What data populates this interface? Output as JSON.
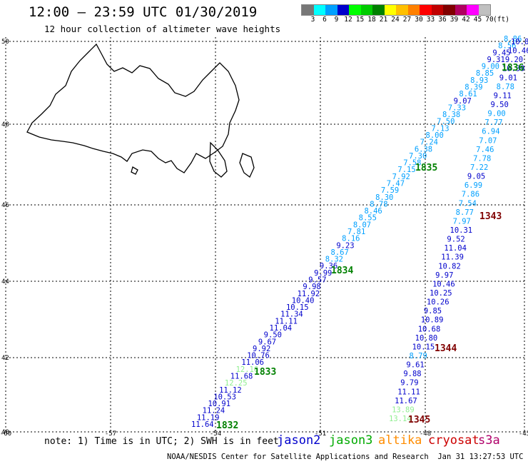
{
  "header": {
    "title": "12:00 – 23:59 UTC 01/30/2019",
    "subtitle": "12 hour collection of altimeter wave heights"
  },
  "colorbar": {
    "colors": [
      "#777777",
      "#00ffff",
      "#00a0ff",
      "#0000cc",
      "#00ff00",
      "#00cc00",
      "#008000",
      "#ffff00",
      "#ffc000",
      "#ff8000",
      "#ff0000",
      "#c00000",
      "#800000",
      "#b00060",
      "#ff00ff",
      "#c0c0c0"
    ],
    "labels": [
      "3",
      "6",
      "9",
      "12",
      "15",
      "18",
      "21",
      "24",
      "27",
      "30",
      "33",
      "36",
      "39",
      "42",
      "45",
      "70",
      "(ft)"
    ]
  },
  "axes": {
    "lon_labels": [
      "-60",
      "-57",
      "-54",
      "-51",
      "-48",
      "-45"
    ],
    "lat_labels": [
      "50",
      "48",
      "46",
      "44",
      "42",
      "40"
    ]
  },
  "track_labels": [
    {
      "text": "1832",
      "color": "#008000"
    },
    {
      "text": "1833",
      "color": "#008000"
    },
    {
      "text": "1834",
      "color": "#008000"
    },
    {
      "text": "1835",
      "color": "#008000"
    },
    {
      "text": "1836",
      "color": "#008000"
    },
    {
      "text": "1343",
      "color": "#800000"
    },
    {
      "text": "1344",
      "color": "#800000"
    },
    {
      "text": "1345",
      "color": "#800000"
    }
  ],
  "tracks": {
    "jason3": [
      {
        "v": "11.64",
        "c": "#0000cc"
      },
      {
        "v": "11.19",
        "c": "#0000cc"
      },
      {
        "v": "11.24",
        "c": "#0000cc"
      },
      {
        "v": "10.91",
        "c": "#0000cc"
      },
      {
        "v": "10.53",
        "c": "#0000cc"
      },
      {
        "v": "11.12",
        "c": "#0000cc"
      },
      {
        "v": "12.25",
        "c": "#90ee90"
      },
      {
        "v": "11.68",
        "c": "#0000cc"
      },
      {
        "v": "12.16",
        "c": "#90ee90"
      },
      {
        "v": "11.06",
        "c": "#0000cc"
      },
      {
        "v": "10.76",
        "c": "#0000cc"
      },
      {
        "v": "9.92",
        "c": "#0000cc"
      },
      {
        "v": "9.67",
        "c": "#0000cc"
      },
      {
        "v": "9.50",
        "c": "#0000cc"
      },
      {
        "v": "11.04",
        "c": "#0000cc"
      },
      {
        "v": "11.11",
        "c": "#0000cc"
      },
      {
        "v": "11.34",
        "c": "#0000cc"
      },
      {
        "v": "10.15",
        "c": "#0000cc"
      },
      {
        "v": "10.40",
        "c": "#0000cc"
      },
      {
        "v": "11.92",
        "c": "#0000cc"
      },
      {
        "v": "9.98",
        "c": "#0000cc"
      },
      {
        "v": "9.57",
        "c": "#0000cc"
      },
      {
        "v": "9.99",
        "c": "#0000cc"
      },
      {
        "v": "9.36",
        "c": "#0000cc"
      },
      {
        "v": "8.32",
        "c": "#00a0ff"
      },
      {
        "v": "8.67",
        "c": "#00a0ff"
      },
      {
        "v": "9.23",
        "c": "#0000cc"
      },
      {
        "v": "8.16",
        "c": "#00a0ff"
      },
      {
        "v": "7.81",
        "c": "#00a0ff"
      },
      {
        "v": "8.07",
        "c": "#00a0ff"
      },
      {
        "v": "8.55",
        "c": "#00a0ff"
      },
      {
        "v": "8.46",
        "c": "#00a0ff"
      },
      {
        "v": "8.78",
        "c": "#00a0ff"
      },
      {
        "v": "8.30",
        "c": "#00a0ff"
      },
      {
        "v": "7.59",
        "c": "#00a0ff"
      },
      {
        "v": "7.47",
        "c": "#00a0ff"
      },
      {
        "v": "7.92",
        "c": "#00a0ff"
      },
      {
        "v": "7.15",
        "c": "#00a0ff"
      },
      {
        "v": "7.58",
        "c": "#00a0ff"
      },
      {
        "v": "7.30",
        "c": "#00a0ff"
      },
      {
        "v": "6.38",
        "c": "#00a0ff"
      },
      {
        "v": "7.24",
        "c": "#00a0ff"
      },
      {
        "v": "8.00",
        "c": "#00a0ff"
      },
      {
        "v": "7.13",
        "c": "#00a0ff"
      },
      {
        "v": "7.50",
        "c": "#00a0ff"
      },
      {
        "v": "8.38",
        "c": "#00a0ff"
      },
      {
        "v": "7.33",
        "c": "#00a0ff"
      },
      {
        "v": "9.07",
        "c": "#0000cc"
      },
      {
        "v": "8.61",
        "c": "#00a0ff"
      },
      {
        "v": "8.39",
        "c": "#00a0ff"
      },
      {
        "v": "8.93",
        "c": "#00a0ff"
      },
      {
        "v": "8.85",
        "c": "#00a0ff"
      },
      {
        "v": "9.00",
        "c": "#00a0ff"
      },
      {
        "v": "9.31",
        "c": "#0000cc"
      },
      {
        "v": "9.45",
        "c": "#0000cc"
      },
      {
        "v": "8.56",
        "c": "#00a0ff"
      },
      {
        "v": "8.86",
        "c": "#00a0ff"
      }
    ],
    "jason3_east": [
      {
        "v": "10.8",
        "c": "#0000cc"
      },
      {
        "v": "10.46",
        "c": "#0000cc"
      },
      {
        "v": "9.20",
        "c": "#0000cc"
      },
      {
        "v": "10.39",
        "c": "#0000cc"
      },
      {
        "v": "9.01",
        "c": "#0000cc"
      },
      {
        "v": "8.78",
        "c": "#00a0ff"
      },
      {
        "v": "9.11",
        "c": "#0000cc"
      },
      {
        "v": "9.50",
        "c": "#0000cc"
      },
      {
        "v": "9.00",
        "c": "#00a0ff"
      },
      {
        "v": "7.77",
        "c": "#00a0ff"
      },
      {
        "v": "6.94",
        "c": "#00a0ff"
      },
      {
        "v": "7.07",
        "c": "#00a0ff"
      },
      {
        "v": "7.46",
        "c": "#00a0ff"
      },
      {
        "v": "7.78",
        "c": "#00a0ff"
      },
      {
        "v": "7.22",
        "c": "#00a0ff"
      },
      {
        "v": "9.05",
        "c": "#0000cc"
      },
      {
        "v": "6.99",
        "c": "#00a0ff"
      },
      {
        "v": "7.86",
        "c": "#00a0ff"
      },
      {
        "v": "7.54",
        "c": "#00a0ff"
      },
      {
        "v": "8.77",
        "c": "#00a0ff"
      },
      {
        "v": "7.97",
        "c": "#00a0ff"
      },
      {
        "v": "10.31",
        "c": "#0000cc"
      },
      {
        "v": "9.52",
        "c": "#0000cc"
      },
      {
        "v": "11.04",
        "c": "#0000cc"
      },
      {
        "v": "11.39",
        "c": "#0000cc"
      },
      {
        "v": "10.82",
        "c": "#0000cc"
      },
      {
        "v": "9.97",
        "c": "#0000cc"
      },
      {
        "v": "10.46",
        "c": "#0000cc"
      },
      {
        "v": "10.25",
        "c": "#0000cc"
      },
      {
        "v": "10.26",
        "c": "#0000cc"
      },
      {
        "v": "9.85",
        "c": "#0000cc"
      },
      {
        "v": "10.89",
        "c": "#0000cc"
      },
      {
        "v": "10.68",
        "c": "#0000cc"
      },
      {
        "v": "10.80",
        "c": "#0000cc"
      },
      {
        "v": "10.15",
        "c": "#0000cc"
      },
      {
        "v": "8.79",
        "c": "#00a0ff"
      },
      {
        "v": "9.61",
        "c": "#0000cc"
      },
      {
        "v": "9.88",
        "c": "#0000cc"
      },
      {
        "v": "9.79",
        "c": "#0000cc"
      },
      {
        "v": "11.11",
        "c": "#0000cc"
      },
      {
        "v": "11.67",
        "c": "#0000cc"
      },
      {
        "v": "13.89",
        "c": "#90ee90"
      },
      {
        "v": "13.14",
        "c": "#90ee90"
      }
    ]
  },
  "footer": {
    "note": "note: 1) Time is in UTC; 2) SWH is in feet",
    "satellites": [
      {
        "name": "jason2",
        "color": "#0000cc"
      },
      {
        "name": "jason3",
        "color": "#00aa00"
      },
      {
        "name": "altika",
        "color": "#ff8c00"
      },
      {
        "name": "cryosat",
        "color": "#cc0000"
      },
      {
        "name": "s3a",
        "color": "#b0006a"
      }
    ],
    "credit": "NOAA/NESDIS Center for Satellite Applications and Research",
    "timestamp": "Jan 31 13:27:53 UTC 2019"
  }
}
